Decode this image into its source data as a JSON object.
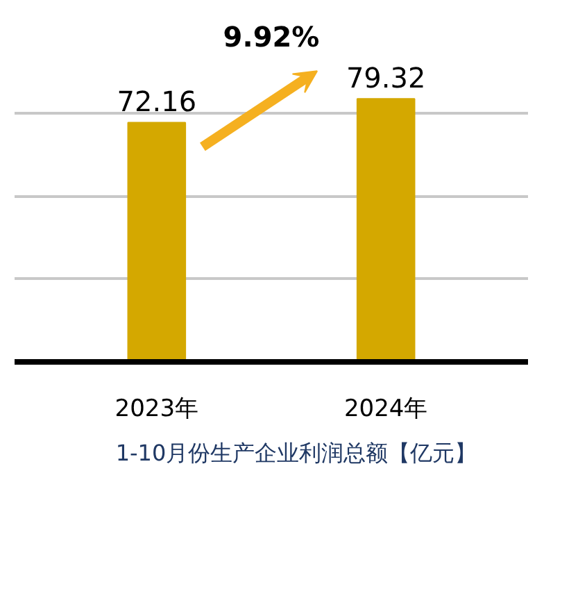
{
  "chart_data": {
    "type": "bar",
    "categories": [
      "2023年",
      "2024年"
    ],
    "series": [
      {
        "name": "1-10月份生产企业利润总额【亿元】",
        "color": "#d4a800",
        "values": [
          72.16,
          79.32
        ]
      }
    ],
    "data_labels": true,
    "annotations": [
      "9.92%"
    ],
    "yticks": [
      {
        "value": 0,
        "label": null
      },
      {
        "value": 25,
        "label": null
      },
      {
        "value": 50,
        "label": null
      },
      {
        "value": 75,
        "label": null
      }
    ],
    "grid": "y",
    "tick_labels": "x",
    "legend": "bottom"
  }
}
